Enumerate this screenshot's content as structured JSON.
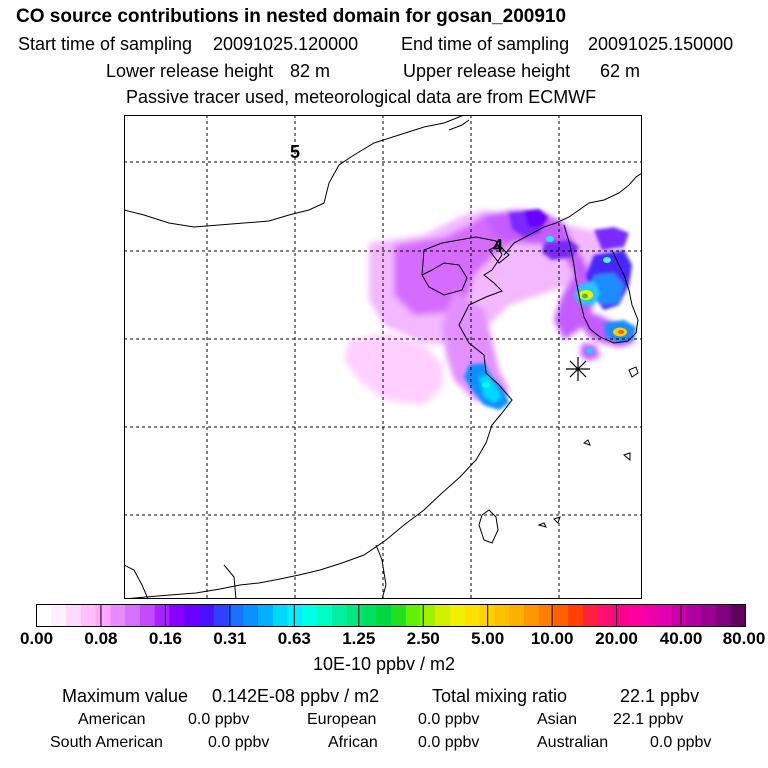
{
  "header": {
    "title": "CO  source contributions in nested domain for gosan_200910",
    "start_label": "Start time of sampling",
    "start_value": "20091025.120000",
    "end_label": "End time of sampling",
    "end_value": "20091025.150000",
    "lower_label": "Lower release height",
    "lower_value": "82 m",
    "upper_label": "Upper release height",
    "upper_value": "62 m",
    "note": "Passive tracer used, meteorological data are from ECMWF"
  },
  "map": {
    "grid_labels": [
      "5",
      "4"
    ],
    "release_marker": "star-asterisk"
  },
  "colorbar": {
    "ticks": [
      "0.00",
      "0.08",
      "0.16",
      "0.31",
      "0.63",
      "1.25",
      "2.50",
      "5.00",
      "10.00",
      "20.00",
      "40.00",
      "80.00"
    ],
    "units": "10E-10 ppbv / m2",
    "colors": [
      "#ffffff",
      "#fff0ff",
      "#ffd9ff",
      "#ffbfff",
      "#ffa6ff",
      "#e98bff",
      "#d870ff",
      "#c44cff",
      "#aa22ff",
      "#8a00ff",
      "#6a00ff",
      "#4a10ff",
      "#3040ff",
      "#1a70ff",
      "#0a90ff",
      "#00b0ff",
      "#00d8ff",
      "#00f0ff",
      "#00ffe8",
      "#00ffc0",
      "#00f0a0",
      "#00e880",
      "#00e060",
      "#00d840",
      "#20e020",
      "#60f000",
      "#a0f000",
      "#d0f000",
      "#f0f000",
      "#ffe000",
      "#ffd000",
      "#ffc000",
      "#ffb000",
      "#ff9800",
      "#ff8000",
      "#ff6000",
      "#ff4000",
      "#ff2040",
      "#ff1070",
      "#ff0090",
      "#ff00a0",
      "#f000a8",
      "#e000b0",
      "#c800a8",
      "#b000a0",
      "#980090",
      "#800080",
      "#600060"
    ]
  },
  "stats": {
    "max_label": "Maximum value",
    "max_value": "0.142E-08 ppbv / m2",
    "total_label": "Total mixing ratio",
    "total_value": "22.1 ppbv",
    "regions": [
      {
        "name": "American",
        "value": "0.0 ppbv"
      },
      {
        "name": "European",
        "value": "0.0 ppbv"
      },
      {
        "name": "Asian",
        "value": "22.1 ppbv"
      },
      {
        "name": "South American",
        "value": "0.0 ppbv"
      },
      {
        "name": "African",
        "value": "0.0 ppbv"
      },
      {
        "name": "Australian",
        "value": "0.0 ppbv"
      }
    ]
  }
}
